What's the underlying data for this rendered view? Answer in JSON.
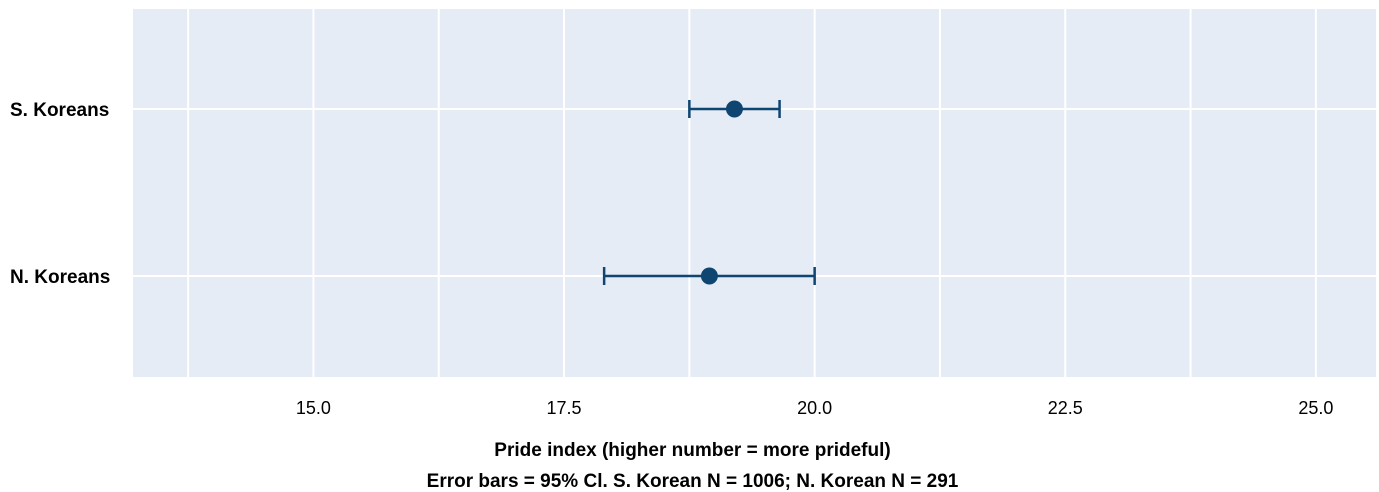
{
  "chart_data": {
    "type": "scatter",
    "subtype": "point-with-error-bars",
    "categories": [
      "S. Koreans",
      "N. Koreans"
    ],
    "points": [
      {
        "category": "S. Koreans",
        "value": 19.2,
        "ci_low": 18.75,
        "ci_high": 19.65
      },
      {
        "category": "N. Koreans",
        "value": 18.95,
        "ci_low": 17.9,
        "ci_high": 20.0
      }
    ],
    "xlim": [
      13.2,
      25.6
    ],
    "x_ticks": [
      15.0,
      17.5,
      20.0,
      22.5,
      25.0
    ],
    "x_tick_labels": [
      "15.0",
      "17.5",
      "20.0",
      "22.5",
      "25.0"
    ],
    "x_grid_minor": [
      13.75,
      16.25,
      18.75,
      21.25,
      23.75
    ],
    "xlabel": "Pride index (higher number = more prideful)",
    "xlabel_line2": "Error bars = 95% Cl. S. Korean N = 1006; N. Korean N = 291",
    "grid": true,
    "background_color": "#e5ecf6",
    "grid_color": "#ffffff",
    "marker_color": "#0e4571"
  }
}
